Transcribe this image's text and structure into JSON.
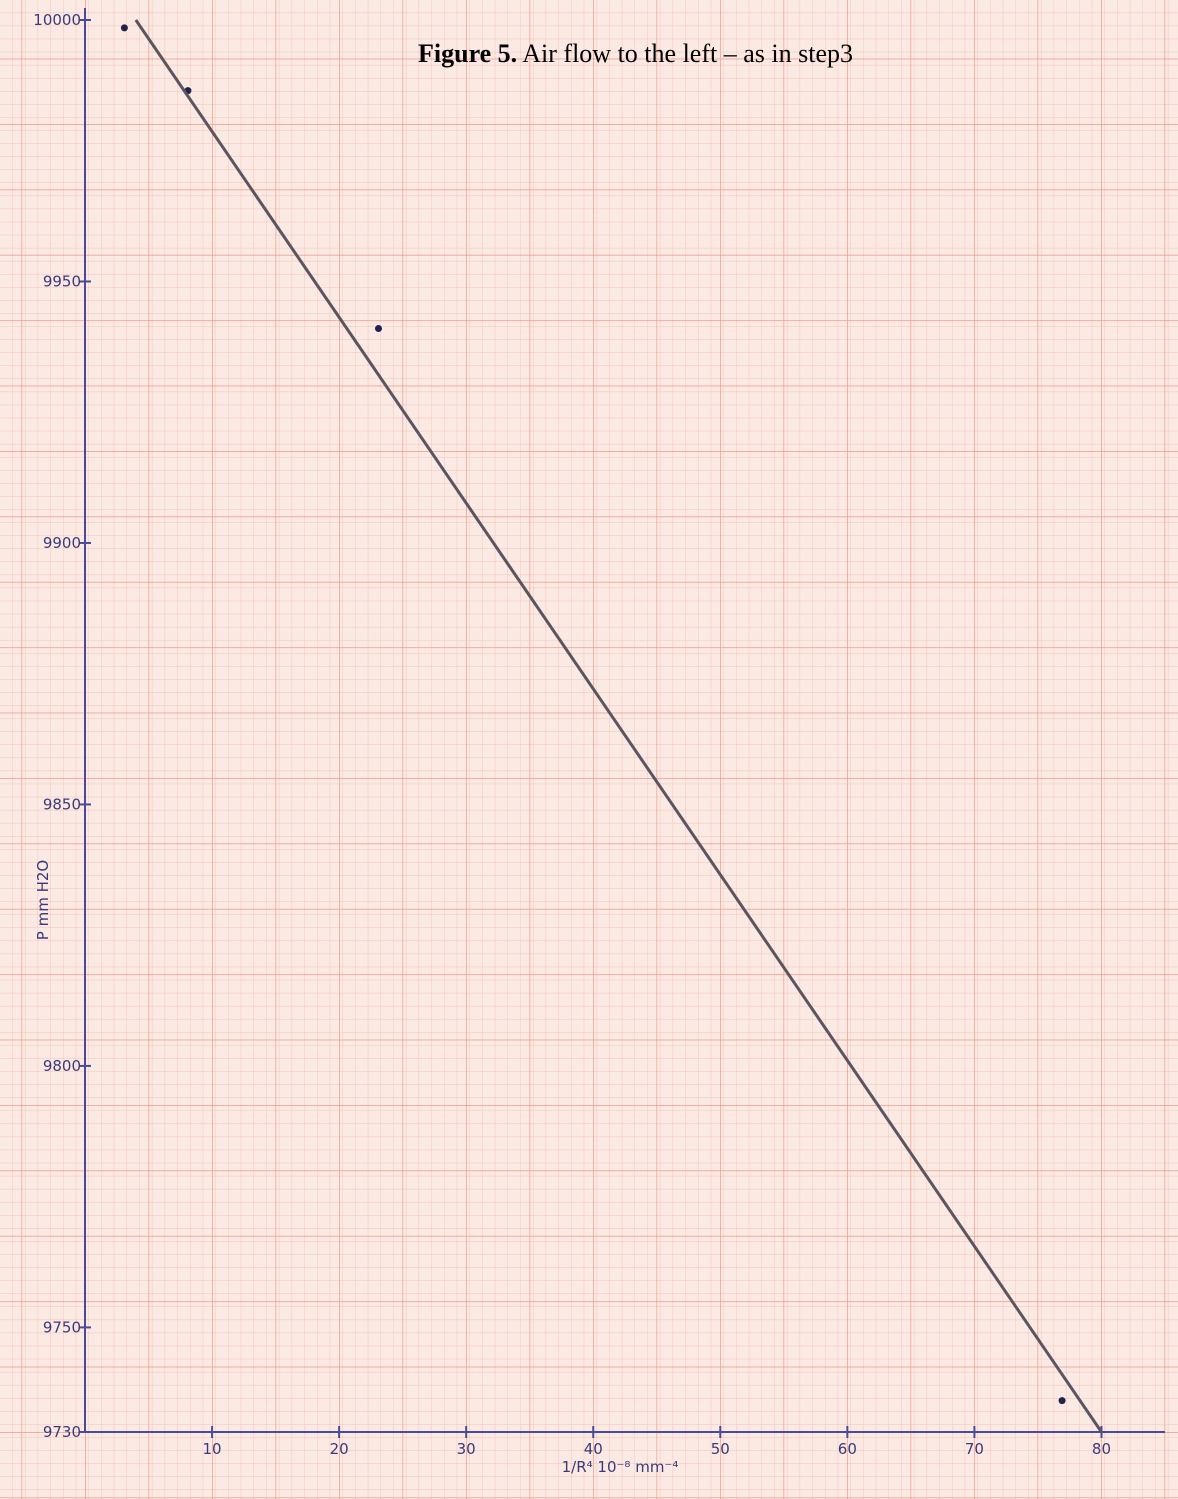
{
  "chart_data": {
    "type": "scatter",
    "title_label": "Figure 5.",
    "title": "Air flow to the left – as in step3",
    "x_label": "1/R⁴   10⁻⁸ mm⁻⁴",
    "y_label": "P  mm H2O",
    "xlim": [
      0,
      85
    ],
    "ylim": [
      9730,
      10000
    ],
    "xticks": [
      10,
      20,
      30,
      40,
      50,
      60,
      70,
      80
    ],
    "yticks": [
      9730,
      9750,
      9800,
      9850,
      9900,
      9950,
      10000
    ],
    "series": [
      {
        "type": "scatter",
        "color": "#22224a",
        "x": [
          3.1,
          8.1,
          23.1,
          76.9
        ],
        "values": [
          9998.5,
          9986.5,
          9941,
          9736
        ]
      },
      {
        "type": "line",
        "color": "#5a5560",
        "x": [
          4,
          80
        ],
        "values": [
          10000,
          9730
        ]
      }
    ],
    "grid": true
  }
}
